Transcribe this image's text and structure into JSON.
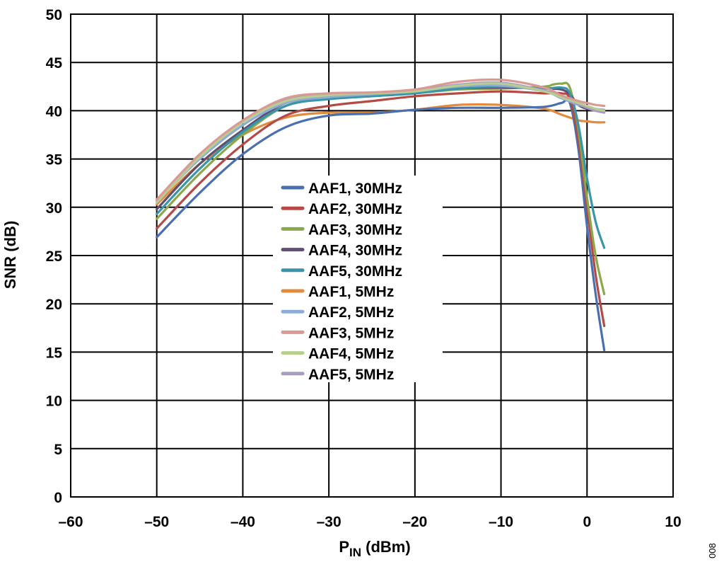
{
  "chart_data": {
    "type": "line",
    "title": "",
    "xlabel_main": "P",
    "xlabel_sub": "IN",
    "xlabel_unit": " (dBm)",
    "ylabel": "SNR (dB)",
    "xlim": [
      -60,
      10
    ],
    "ylim": [
      0,
      50
    ],
    "xticks": [
      -60,
      -50,
      -40,
      -30,
      -20,
      -10,
      0,
      10
    ],
    "xtick_labels": [
      "–60",
      "–50",
      "–40",
      "–30",
      "–20",
      "–10",
      "0",
      "10"
    ],
    "yticks": [
      0,
      5,
      10,
      15,
      20,
      25,
      30,
      35,
      40,
      45,
      50
    ],
    "ytick_labels": [
      "0",
      "5",
      "10",
      "15",
      "20",
      "25",
      "30",
      "35",
      "40",
      "45",
      "50"
    ],
    "grid": true,
    "legend_position": "center",
    "figure_id": "008",
    "series": [
      {
        "name": "AAF1, 30MHz",
        "color": "#4a6fb0",
        "x": [
          -50,
          -45,
          -40,
          -35,
          -30,
          -25,
          -20,
          -15,
          -10,
          -5,
          -3,
          -2,
          -1,
          0,
          1,
          2
        ],
        "y": [
          26.9,
          31.5,
          35.5,
          38.3,
          39.5,
          39.7,
          40.1,
          40.3,
          40.3,
          40.4,
          40.8,
          40.8,
          36.0,
          28.0,
          21.0,
          15.2
        ]
      },
      {
        "name": "AAF2, 30MHz",
        "color": "#b54a45",
        "x": [
          -50,
          -45,
          -40,
          -35,
          -30,
          -25,
          -20,
          -15,
          -10,
          -5,
          -3,
          -2,
          -1,
          0,
          1,
          2
        ],
        "y": [
          27.8,
          32.5,
          36.5,
          39.5,
          40.5,
          41.0,
          41.5,
          41.8,
          42.0,
          41.8,
          41.8,
          41.2,
          37.0,
          30.0,
          23.0,
          17.7
        ]
      },
      {
        "name": "AAF3, 30MHz",
        "color": "#8aa84a",
        "x": [
          -50,
          -45,
          -40,
          -35,
          -30,
          -25,
          -20,
          -15,
          -10,
          -5,
          -4,
          -3,
          -2,
          -1,
          0,
          1,
          2
        ],
        "y": [
          28.8,
          33.5,
          37.5,
          40.5,
          41.3,
          41.5,
          41.8,
          42.2,
          42.3,
          42.5,
          42.7,
          42.8,
          42.4,
          38.0,
          31.0,
          25.0,
          21.0
        ]
      },
      {
        "name": "AAF4, 30MHz",
        "color": "#5f4f70",
        "x": [
          -50,
          -45,
          -40,
          -35,
          -30,
          -25,
          -20,
          -15,
          -10,
          -5,
          -3,
          -2,
          -1,
          0,
          1,
          2
        ],
        "y": [
          29.8,
          34.5,
          38.0,
          40.8,
          41.5,
          41.6,
          41.9,
          42.3,
          42.4,
          42.3,
          42.2,
          41.7,
          40.6,
          40.2,
          40.0,
          39.9
        ]
      },
      {
        "name": "AAF5, 30MHz",
        "color": "#3a95aa",
        "x": [
          -50,
          -45,
          -40,
          -35,
          -30,
          -25,
          -20,
          -15,
          -10,
          -5,
          -3,
          -2,
          -1,
          0,
          1,
          2
        ],
        "y": [
          29.3,
          34.0,
          37.8,
          40.5,
          41.2,
          41.5,
          41.8,
          42.3,
          42.5,
          42.3,
          42.4,
          41.8,
          38.5,
          33.0,
          28.5,
          25.8
        ]
      },
      {
        "name": "AAF1, 5MHz",
        "color": "#e38b3c",
        "x": [
          -50,
          -45,
          -40,
          -35,
          -30,
          -25,
          -20,
          -15,
          -10,
          -5,
          -3,
          -1,
          0,
          1,
          2
        ],
        "y": [
          30.3,
          34.5,
          37.5,
          39.3,
          39.8,
          39.8,
          40.1,
          40.6,
          40.6,
          40.2,
          39.6,
          39.0,
          38.9,
          38.8,
          38.8
        ]
      },
      {
        "name": "AAF2, 5MHz",
        "color": "#8eabd5",
        "x": [
          -50,
          -45,
          -40,
          -35,
          -30,
          -25,
          -20,
          -15,
          -10,
          -5,
          -3,
          -1,
          0,
          1,
          2
        ],
        "y": [
          30.6,
          35.0,
          38.5,
          40.8,
          41.4,
          41.7,
          42.0,
          42.5,
          42.6,
          42.0,
          41.3,
          40.6,
          40.4,
          40.2,
          40.1
        ]
      },
      {
        "name": "AAF3, 5MHz",
        "color": "#d99a96",
        "x": [
          -50,
          -45,
          -40,
          -35,
          -30,
          -25,
          -20,
          -15,
          -10,
          -5,
          -3,
          -1,
          0,
          1,
          2
        ],
        "y": [
          30.8,
          35.5,
          39.0,
          41.3,
          41.8,
          41.9,
          42.2,
          43.0,
          43.2,
          42.4,
          41.6,
          41.0,
          40.8,
          40.6,
          40.5
        ]
      },
      {
        "name": "AAF4, 5MHz",
        "color": "#b8ce90",
        "x": [
          -50,
          -45,
          -40,
          -35,
          -30,
          -25,
          -20,
          -15,
          -10,
          -5,
          -3,
          -1,
          0,
          1,
          2
        ],
        "y": [
          30.5,
          35.2,
          38.8,
          41.0,
          41.6,
          41.8,
          42.0,
          42.6,
          42.8,
          42.0,
          41.4,
          40.8,
          40.5,
          40.2,
          40.0
        ]
      },
      {
        "name": "AAF5, 5MHz",
        "color": "#a89cc0",
        "x": [
          -50,
          -45,
          -40,
          -35,
          -30,
          -25,
          -20,
          -15,
          -10,
          -5,
          -3,
          -1,
          0,
          1,
          2
        ],
        "y": [
          30.7,
          35.3,
          38.9,
          41.1,
          41.7,
          41.8,
          42.1,
          42.7,
          42.9,
          42.1,
          41.5,
          40.7,
          40.3,
          40.0,
          39.8
        ]
      }
    ]
  }
}
